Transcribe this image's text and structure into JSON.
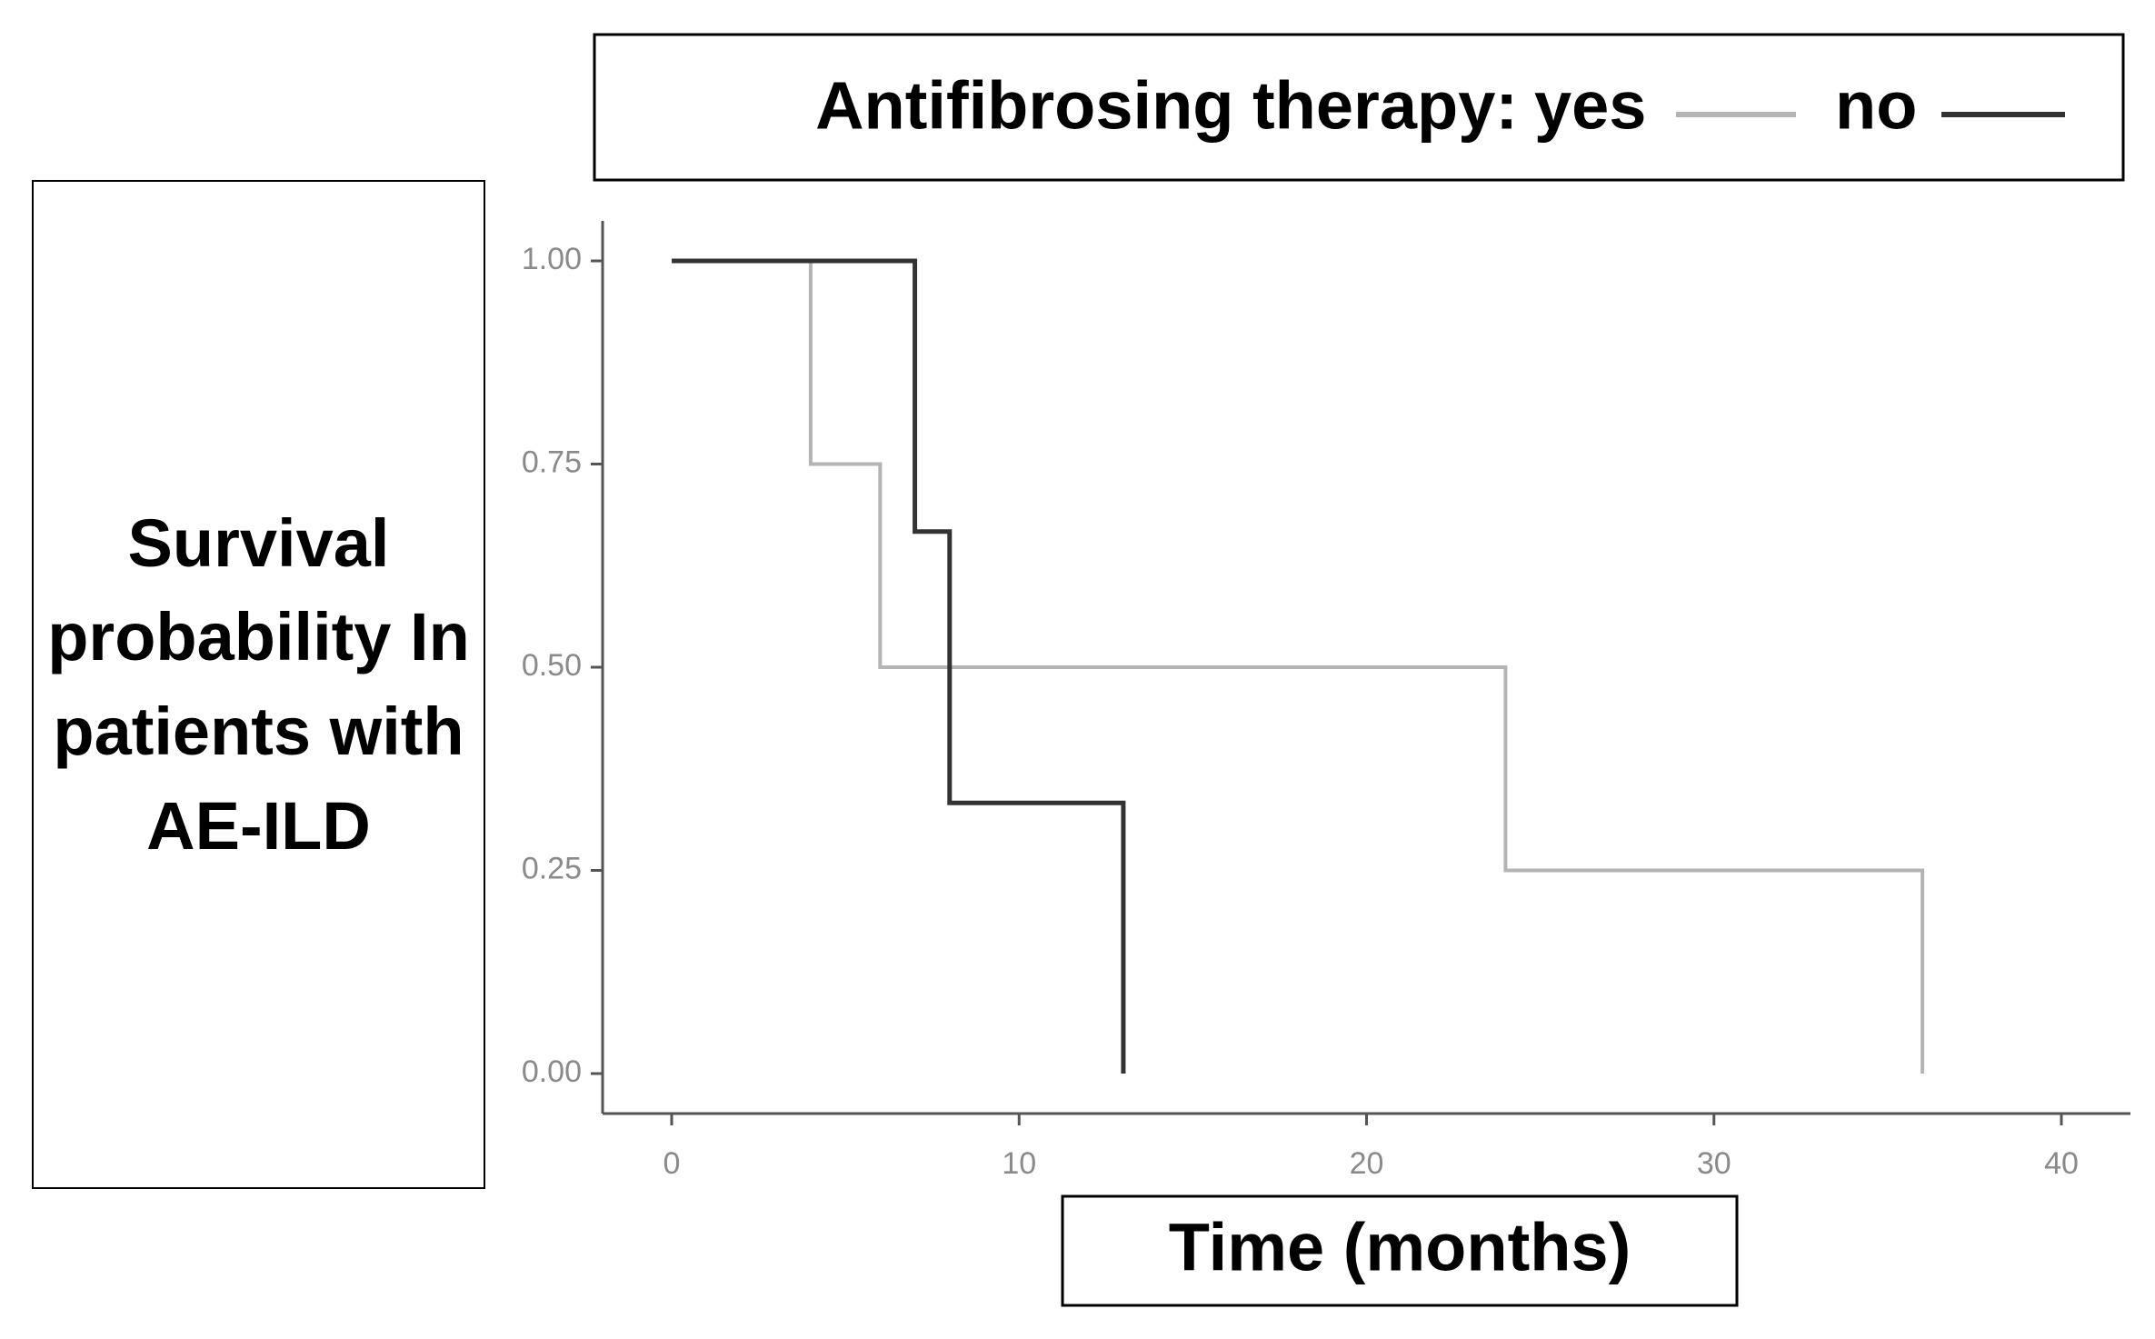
{
  "chart_data": {
    "type": "step",
    "legend_title": "Antifibrosing therapy:",
    "ylabel": "Survival probability In patients with AE-ILD",
    "xlabel": "Time (months)",
    "series": [
      {
        "name": "yes",
        "color": "#b4b4b4",
        "x": [
          0,
          4,
          6,
          24,
          36
        ],
        "values": [
          1,
          0.75,
          0.5,
          0.25,
          0
        ]
      },
      {
        "name": "no",
        "color": "#333333",
        "x": [
          0,
          7,
          8,
          13
        ],
        "values": [
          1,
          0.667,
          0.333,
          0
        ]
      }
    ],
    "xlim": [
      0,
      40
    ],
    "xticks": [
      0,
      10,
      20,
      30,
      40
    ],
    "ylim": [
      0,
      1
    ],
    "yticks": [
      {
        "value": 0,
        "label": "0.00"
      },
      {
        "value": 0.25,
        "label": "0.25"
      },
      {
        "value": 0.5,
        "label": "0.50"
      },
      {
        "value": 0.75,
        "label": "0.75"
      },
      {
        "value": 1,
        "label": "1.00"
      }
    ],
    "grid": false
  }
}
